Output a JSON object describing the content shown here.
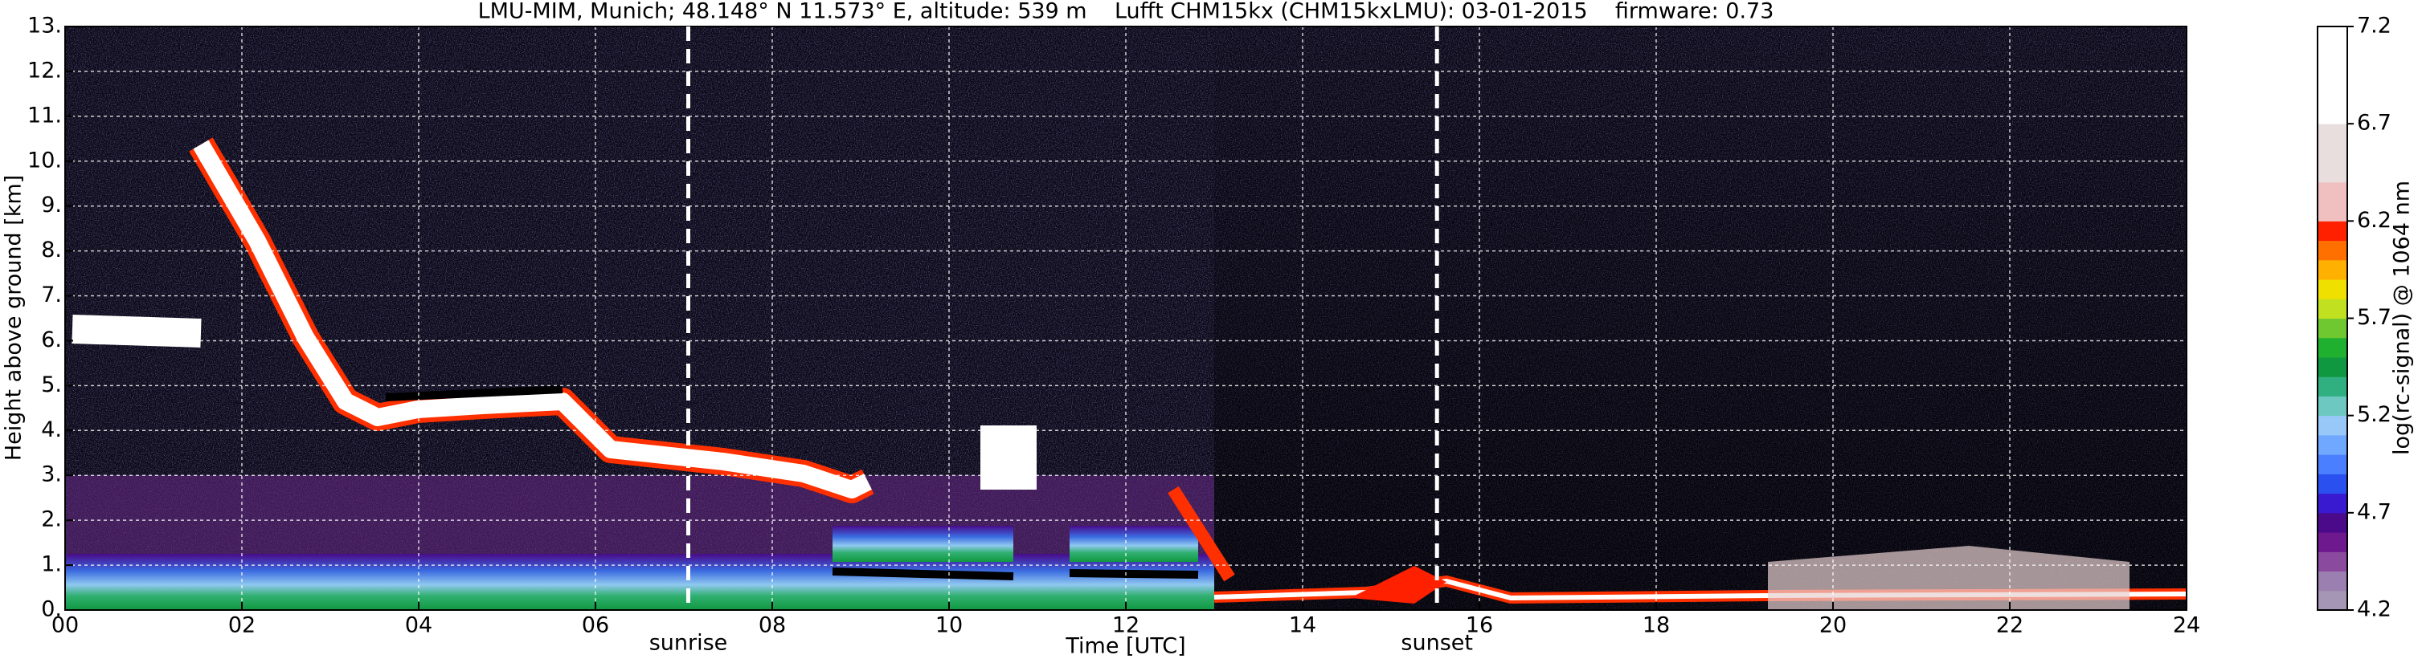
{
  "chart_data": {
    "type": "heatmap",
    "title": "LMU-MIM, Munich; 48.148° N 11.573° E, altitude: 539 m    Lufft CHM15kx (CHM15kxLMU): 03-01-2015    firmware: 0.73",
    "xlabel": "Time [UTC]",
    "ylabel": "Height above ground [km]",
    "colorbar_label": "log(rc-signal) @ 1064 nm",
    "xlim": [
      0,
      24
    ],
    "xticks": [
      {
        "value": 0,
        "label": "00"
      },
      {
        "value": 2,
        "label": "02"
      },
      {
        "value": 4,
        "label": "04"
      },
      {
        "value": 6,
        "label": "06"
      },
      {
        "value": 8,
        "label": "08"
      },
      {
        "value": 10,
        "label": "10"
      },
      {
        "value": 12,
        "label": "12"
      },
      {
        "value": 14,
        "label": "14"
      },
      {
        "value": 16,
        "label": "16"
      },
      {
        "value": 18,
        "label": "18"
      },
      {
        "value": 20,
        "label": "20"
      },
      {
        "value": 22,
        "label": "22"
      },
      {
        "value": 24,
        "label": "24"
      }
    ],
    "ylim": [
      0,
      13
    ],
    "yticks": [
      {
        "value": 0,
        "label": "0."
      },
      {
        "value": 1,
        "label": "1."
      },
      {
        "value": 2,
        "label": "2."
      },
      {
        "value": 3,
        "label": "3."
      },
      {
        "value": 4,
        "label": "4."
      },
      {
        "value": 5,
        "label": "5."
      },
      {
        "value": 6,
        "label": "6."
      },
      {
        "value": 7,
        "label": "7."
      },
      {
        "value": 8,
        "label": "8."
      },
      {
        "value": 9,
        "label": "9."
      },
      {
        "value": 10,
        "label": "10."
      },
      {
        "value": 11,
        "label": "11."
      },
      {
        "value": 12,
        "label": "12."
      },
      {
        "value": 13,
        "label": "13."
      }
    ],
    "clim": [
      4.2,
      7.2
    ],
    "cticks": [
      4.2,
      4.7,
      5.2,
      5.7,
      6.2,
      6.7,
      7.2
    ],
    "colormap": [
      "#a496b4",
      "#9a7fb0",
      "#8a4a9e",
      "#6e1a8e",
      "#4a0a8a",
      "#3a1ad0",
      "#2a50f0",
      "#4a80ff",
      "#70a8ff",
      "#98c8f8",
      "#6cc8c0",
      "#30b080",
      "#109840",
      "#20b030",
      "#70c830",
      "#c0e020",
      "#f0e000",
      "#ffb000",
      "#ff7000",
      "#ff2000",
      "#f0c0c0",
      "#f0c0c0",
      "#e8dede",
      "#e8dede",
      "#e8dede",
      "#ffffff",
      "#ffffff",
      "#ffffff",
      "#ffffff",
      "#ffffff"
    ],
    "grid": true,
    "annotations": [
      {
        "x": 7.05,
        "text": "sunrise"
      },
      {
        "x": 15.52,
        "text": "sunset"
      }
    ]
  }
}
